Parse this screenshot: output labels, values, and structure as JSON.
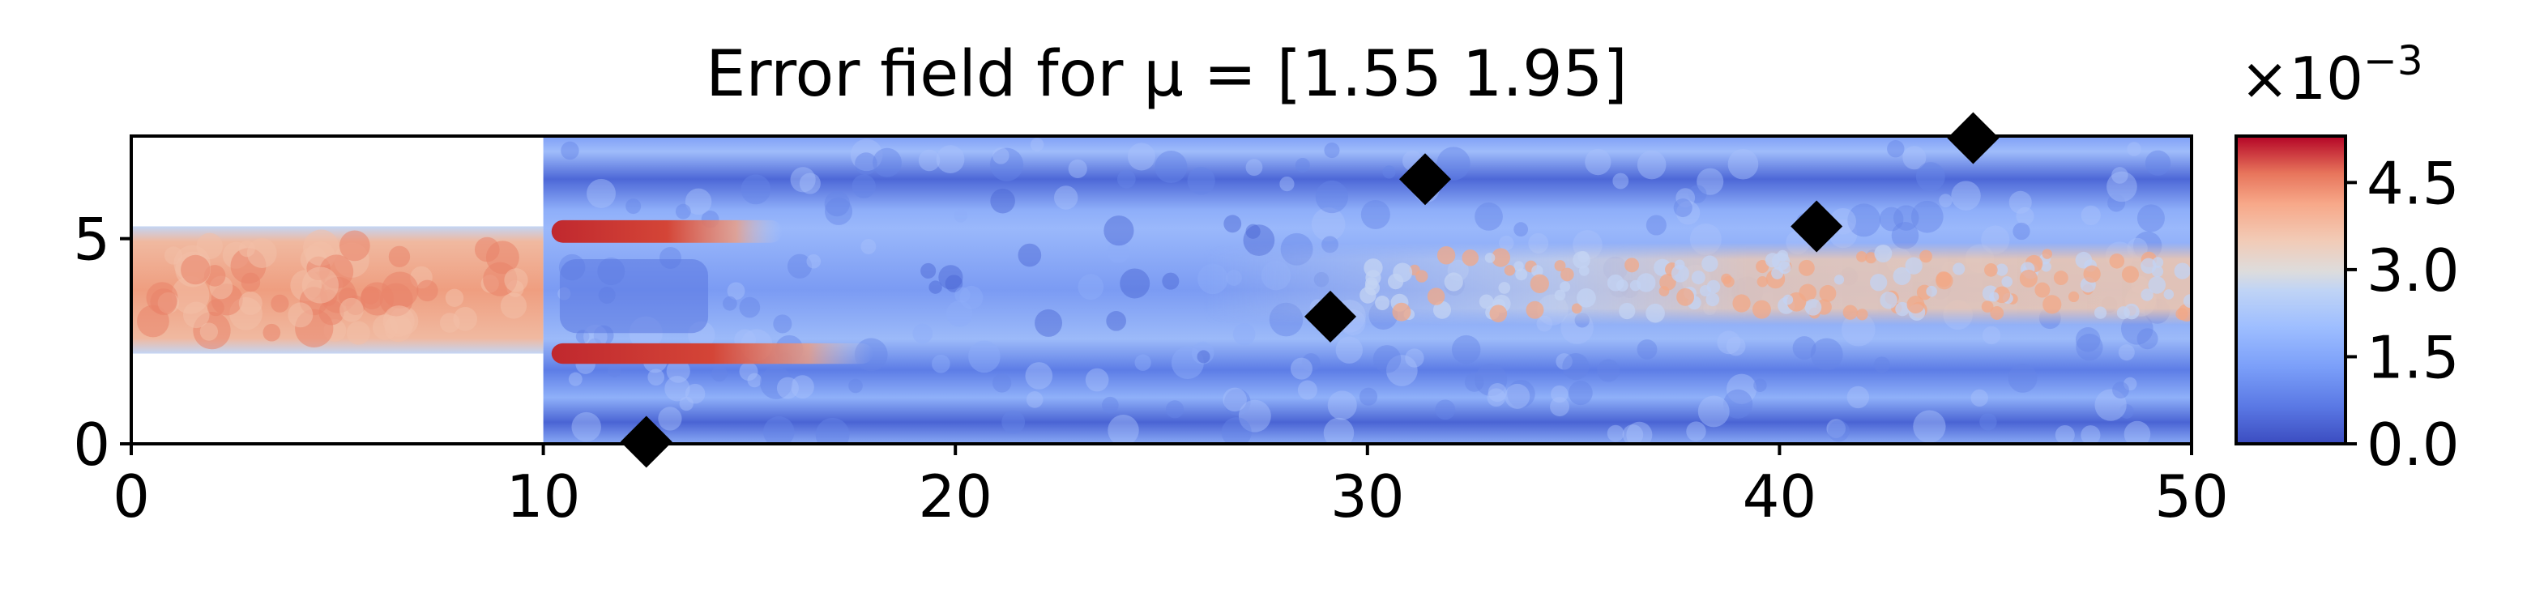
{
  "chart_data": {
    "type": "heatmap",
    "title": "Error field for μ = [1.55 1.95]",
    "xlabel": "",
    "ylabel": "",
    "xlim": [
      0,
      50
    ],
    "ylim": [
      0,
      7.5
    ],
    "x_ticks": [
      "0",
      "10",
      "20",
      "30",
      "40",
      "50"
    ],
    "x_tick_values": [
      0,
      10,
      20,
      30,
      40,
      50
    ],
    "y_ticks": [
      "0",
      "5"
    ],
    "y_tick_values": [
      0,
      5
    ],
    "colorbar": {
      "colormap": "coolwarm",
      "range": [
        0.0,
        0.0053
      ],
      "multiplier_label": "×10",
      "multiplier_exponent": "−3",
      "ticks": [
        "0.0",
        "1.5",
        "3.0",
        "4.5"
      ],
      "tick_values": [
        0.0,
        1.5,
        3.0,
        4.5
      ]
    },
    "domain_regions": [
      {
        "name": "inlet channel",
        "x": [
          0,
          10
        ],
        "y": [
          2.2,
          5.3
        ],
        "level": "high error (~3.8e-3)"
      },
      {
        "name": "main channel",
        "x": [
          10,
          50
        ],
        "y": [
          0,
          7.5
        ],
        "level": "low error with jet band"
      }
    ],
    "sensor_points": [
      {
        "x": 12.5,
        "y": 0.05
      },
      {
        "x": 29.1,
        "y": 3.1
      },
      {
        "x": 31.4,
        "y": 6.45
      },
      {
        "x": 40.9,
        "y": 5.3
      },
      {
        "x": 44.7,
        "y": 7.45
      }
    ],
    "colors": {
      "sensor_marker": "#000000",
      "low": "#3b4cc0",
      "mid": "#dddddd",
      "high": "#b40426"
    }
  }
}
